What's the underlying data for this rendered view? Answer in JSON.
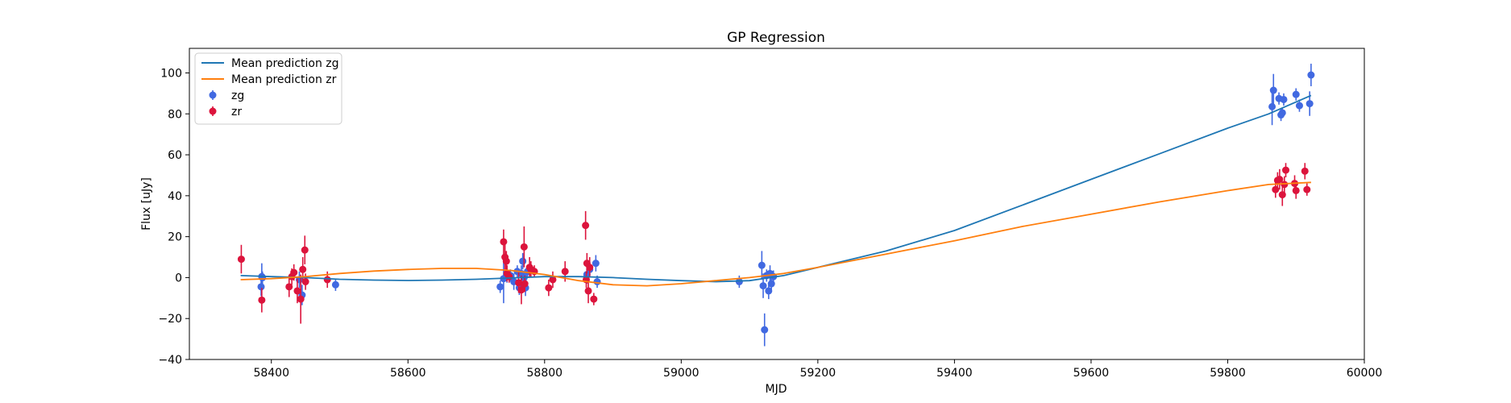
{
  "chart_data": {
    "type": "scatter",
    "title": "GP Regression",
    "xlabel": "MJD",
    "ylabel": "Flux [uJy]",
    "xlim": [
      58280,
      60000
    ],
    "ylim": [
      -40,
      112
    ],
    "xticks": [
      58400,
      58600,
      58800,
      59000,
      59200,
      59400,
      59600,
      59800,
      60000
    ],
    "yticks": [
      -40,
      -20,
      0,
      20,
      40,
      60,
      80,
      100
    ],
    "xtick_labels": [
      "58400",
      "58600",
      "58800",
      "59000",
      "59200",
      "59400",
      "59600",
      "59800",
      "60000"
    ],
    "ytick_labels": [
      "−40",
      "−20",
      "0",
      "20",
      "40",
      "60",
      "80",
      "100"
    ],
    "grid": false,
    "legend_position": "top-left",
    "legend": [
      {
        "label": "Mean prediction zg",
        "kind": "line",
        "color": "#1f77b4"
      },
      {
        "label": "Mean prediction zr",
        "kind": "line",
        "color": "#ff7f0e"
      },
      {
        "label": "zg",
        "kind": "errorbar",
        "color": "#4169e1"
      },
      {
        "label": "zr",
        "kind": "errorbar",
        "color": "#dc143c"
      }
    ],
    "series": [
      {
        "name": "Mean prediction zg",
        "kind": "line",
        "color": "#1f77b4",
        "x": [
          58355,
          58400,
          58450,
          58500,
          58550,
          58600,
          58650,
          58700,
          58750,
          58800,
          58850,
          58900,
          58950,
          59000,
          59050,
          59100,
          59150,
          59200,
          59300,
          59400,
          59500,
          59600,
          59700,
          59800,
          59860,
          59922
        ],
        "y": [
          1.0,
          0.5,
          0.0,
          -0.8,
          -1.2,
          -1.4,
          -1.2,
          -0.8,
          -0.2,
          0.5,
          0.5,
          0.0,
          -0.8,
          -1.5,
          -2.0,
          -1.5,
          1.0,
          5.0,
          13.0,
          23.0,
          35.5,
          48.0,
          60.5,
          73.0,
          80.0,
          89.0
        ]
      },
      {
        "name": "Mean prediction zr",
        "kind": "line",
        "color": "#ff7f0e",
        "x": [
          58355,
          58400,
          58450,
          58500,
          58550,
          58600,
          58650,
          58700,
          58750,
          58800,
          58850,
          58900,
          58950,
          59000,
          59050,
          59100,
          59150,
          59200,
          59300,
          59400,
          59500,
          59600,
          59700,
          59800,
          59860,
          59922
        ],
        "y": [
          -1.0,
          -0.5,
          0.5,
          2.0,
          3.2,
          4.0,
          4.5,
          4.5,
          3.5,
          1.5,
          -1.5,
          -3.5,
          -4.0,
          -3.0,
          -1.5,
          0.0,
          2.0,
          5.0,
          11.5,
          18.0,
          25.0,
          31.0,
          37.0,
          42.5,
          45.5,
          46.5
        ]
      },
      {
        "name": "zg",
        "kind": "errorbar",
        "color": "#4169e1",
        "x": [
          58385,
          58386,
          58387,
          58441,
          58445,
          58494,
          58735,
          58740,
          58745,
          58750,
          58755,
          58760,
          58763,
          58766,
          58768,
          58770,
          58772,
          58775,
          58862,
          58866,
          58875,
          58877,
          59085,
          59118,
          59120,
          59122,
          59125,
          59128,
          59130,
          59132,
          59135,
          59865,
          59867,
          59875,
          59878,
          59880,
          59882,
          59900,
          59905,
          59920,
          59922
        ],
        "y": [
          -4.5,
          0.5,
          0.0,
          -1.0,
          -8.5,
          -3.5,
          -4.5,
          -0.5,
          0.5,
          1.0,
          -2.0,
          3.0,
          -5.0,
          2.0,
          8.0,
          0.0,
          -5.0,
          3.0,
          1.5,
          4.0,
          7.0,
          -2.0,
          -2.0,
          6.0,
          -4.0,
          -25.5,
          1.0,
          -6.5,
          2.0,
          -3.0,
          0.5,
          83.5,
          91.5,
          87.5,
          79.5,
          80.5,
          87.0,
          89.5,
          84.0,
          85.0,
          99.0
        ],
        "err": [
          4.5,
          6.5,
          3.0,
          4.0,
          5.0,
          3.0,
          3.0,
          12.0,
          3.0,
          3.0,
          4.0,
          3.0,
          3.5,
          4.0,
          4.0,
          3.0,
          4.0,
          3.0,
          4.5,
          4.0,
          4.0,
          3.0,
          3.0,
          7.0,
          6.0,
          8.0,
          3.0,
          4.0,
          4.0,
          3.0,
          3.0,
          9.0,
          8.0,
          3.0,
          3.0,
          2.5,
          3.0,
          3.0,
          3.0,
          6.0,
          5.5
        ]
      },
      {
        "name": "zr",
        "kind": "errorbar",
        "color": "#dc143c",
        "x": [
          58356,
          58386,
          58426,
          58430,
          58433,
          58438,
          58443,
          58446,
          58449,
          58450,
          58482,
          58740,
          58742,
          58744,
          58745,
          58748,
          58762,
          58766,
          58770,
          58771,
          58778,
          58780,
          58785,
          58806,
          58812,
          58830,
          58860,
          58861,
          58862,
          58864,
          58866,
          58872,
          59870,
          59873,
          59876,
          59880,
          59883,
          59885,
          59898,
          59900,
          59913,
          59916
        ],
        "y": [
          9.0,
          -11.0,
          -4.5,
          0.5,
          2.5,
          -6.5,
          -10.5,
          4.0,
          13.5,
          -2.0,
          -1.0,
          17.5,
          10.0,
          8.0,
          2.0,
          0.5,
          -2.5,
          -6.0,
          15.0,
          -3.0,
          5.0,
          4.0,
          3.0,
          -5.0,
          -1.0,
          3.0,
          25.5,
          -1.0,
          7.0,
          -6.5,
          5.0,
          -10.5,
          43.0,
          47.5,
          48.0,
          40.5,
          45.5,
          52.5,
          46.0,
          42.5,
          52.0,
          43.0
        ],
        "err": [
          7.0,
          6.0,
          5.0,
          4.0,
          4.0,
          6.0,
          12.0,
          6.0,
          7.0,
          4.0,
          4.0,
          6.0,
          6.0,
          5.0,
          4.0,
          3.0,
          5.0,
          7.0,
          10.0,
          4.0,
          5.0,
          4.0,
          3.0,
          4.0,
          4.0,
          5.0,
          7.0,
          4.0,
          5.0,
          6.0,
          5.0,
          3.0,
          4.0,
          4.0,
          5.0,
          5.5,
          4.0,
          3.5,
          4.0,
          4.0,
          4.0,
          3.0
        ]
      }
    ]
  }
}
